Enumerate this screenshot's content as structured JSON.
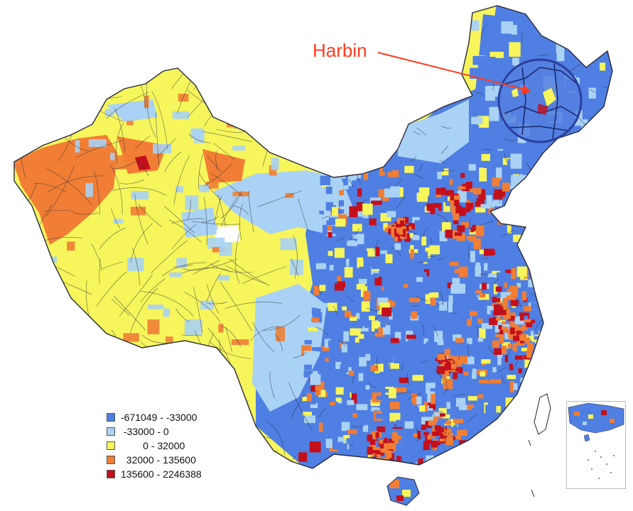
{
  "callout": {
    "label": "Harbin"
  },
  "legend": {
    "items": [
      {
        "label": "-671049 - -33000",
        "color": "#4f7fe3"
      },
      {
        "label": " -33000 - 0",
        "color": "#a9d2f4"
      },
      {
        "label": "        0 - 32000",
        "color": "#f6f55b"
      },
      {
        "label": "  32000 - 135600",
        "color": "#f17e34"
      },
      {
        "label": "135600 - 2246388",
        "color": "#c4101c"
      }
    ]
  },
  "colors": {
    "outline": "#2a2a3a",
    "arrow": "#ff3b1f",
    "magnifier": "#2b3f9e"
  }
}
